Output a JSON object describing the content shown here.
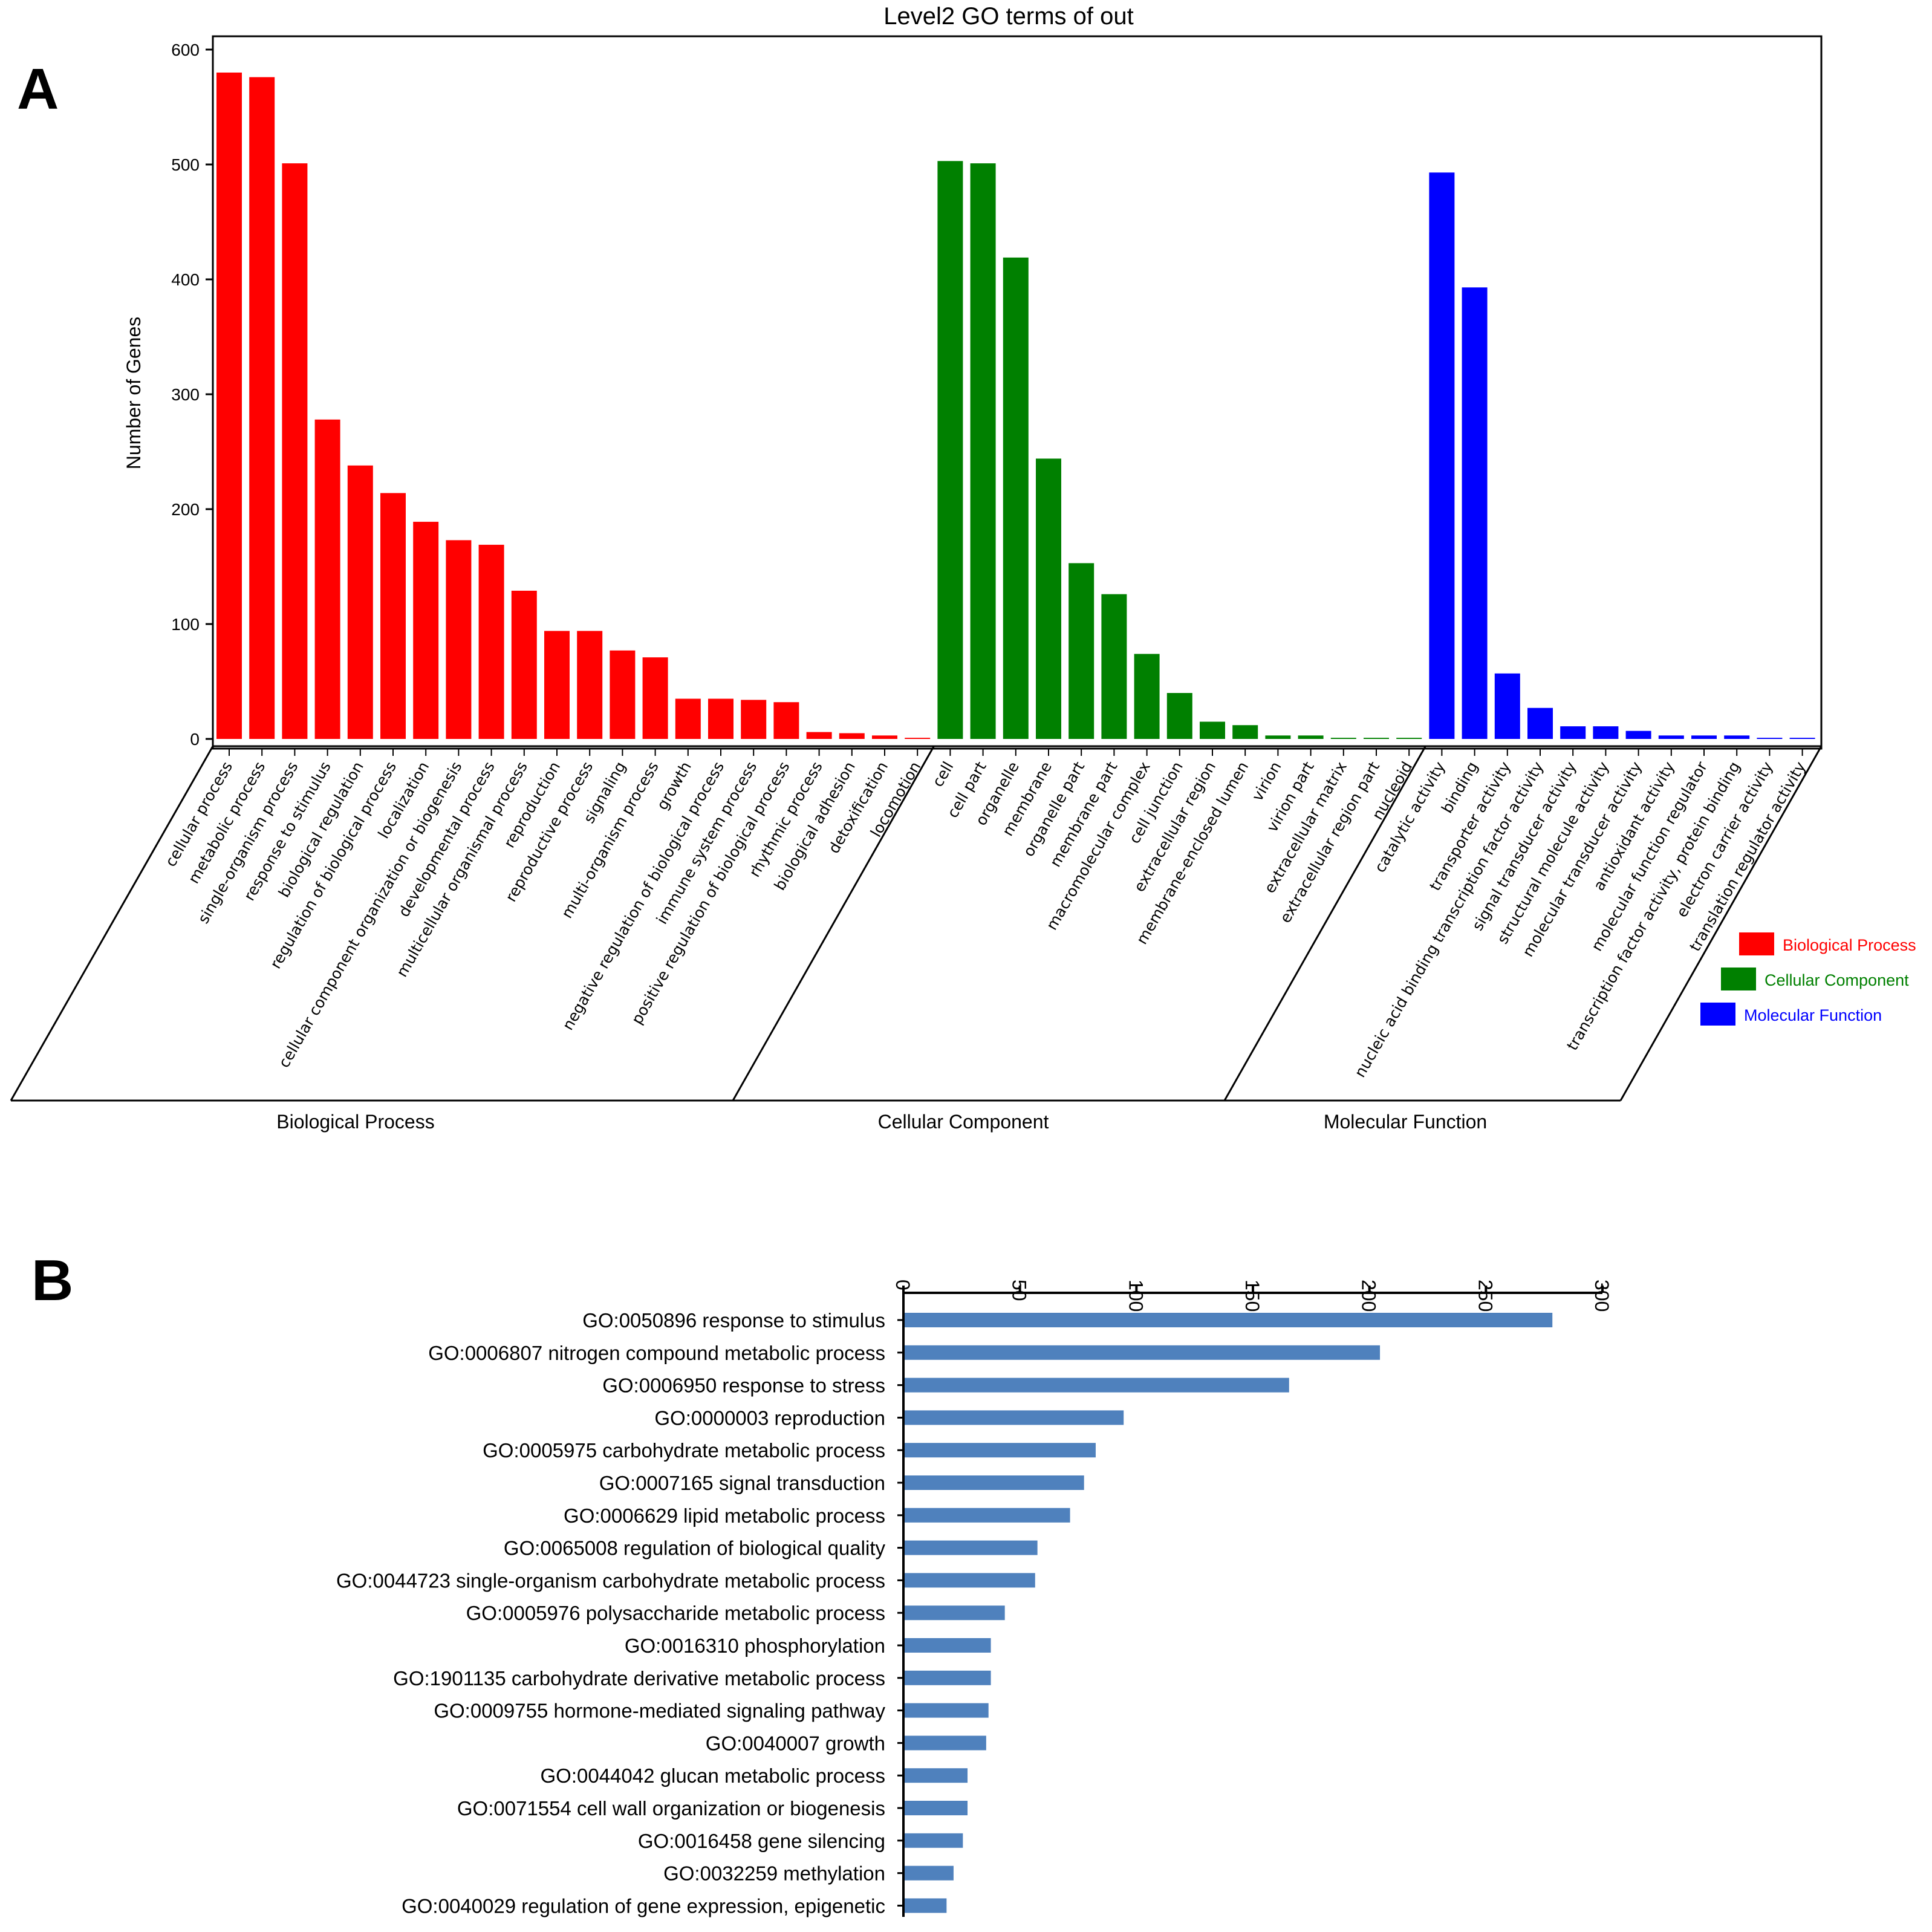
{
  "panel_labels": {
    "a": "A",
    "b": "B"
  },
  "colors": {
    "biological_process": "#ff0000",
    "cellular_component": "#008000",
    "molecular_function": "#0000ff",
    "panel_b_bar": "#4f81bd",
    "axis": "#000000"
  },
  "chart_data": [
    {
      "type": "bar",
      "title": "Level2 GO terms of out",
      "ylabel": "Number of Genes",
      "ylim": [
        0,
        600
      ],
      "yticks": [
        0,
        100,
        200,
        300,
        400,
        500,
        600
      ],
      "grid": false,
      "legend": {
        "position": "right",
        "entries": [
          "Biological Process",
          "Cellular Component",
          "Molecular Function"
        ]
      },
      "groups": [
        {
          "name": "Biological Process",
          "color": "#ff0000",
          "categories": [
            "cellular process",
            "metabolic process",
            "single-organism process",
            "response to stimulus",
            "biological regulation",
            "regulation of biological process",
            "localization",
            "cellular component organization or biogenesis",
            "developmental process",
            "multicellular organismal process",
            "reproduction",
            "reproductive process",
            "signaling",
            "multi-organism process",
            "growth",
            "negative regulation of biological process",
            "immune system process",
            "positive regulation of biological process",
            "rhythmic process",
            "biological adhesion",
            "detoxification",
            "locomotion"
          ],
          "values": [
            580,
            576,
            501,
            278,
            238,
            214,
            189,
            173,
            169,
            129,
            94,
            94,
            77,
            71,
            35,
            35,
            34,
            32,
            6,
            5,
            3,
            1
          ]
        },
        {
          "name": "Cellular Component",
          "color": "#008000",
          "categories": [
            "cell",
            "cell part",
            "organelle",
            "membrane",
            "organelle part",
            "membrane part",
            "macromolecular complex",
            "cell junction",
            "extracellular region",
            "membrane-enclosed lumen",
            "virion",
            "virion part",
            "extracellular matrix",
            "extracellular region part",
            "nucleoid"
          ],
          "values": [
            503,
            501,
            419,
            244,
            153,
            126,
            74,
            40,
            15,
            12,
            3,
            3,
            1,
            1,
            1
          ]
        },
        {
          "name": "Molecular Function",
          "color": "#0000ff",
          "categories": [
            "catalytic activity",
            "binding",
            "transporter activity",
            "nucleic acid binding transcription factor activity",
            "signal transducer activity",
            "structural molecule activity",
            "molecular transducer activity",
            "antioxidant activity",
            "molecular function regulator",
            "transcription factor activity, protein binding",
            "electron carrier activity",
            "translation regulator activity"
          ],
          "values": [
            493,
            393,
            57,
            27,
            11,
            11,
            7,
            3,
            3,
            3,
            1,
            1
          ]
        }
      ]
    },
    {
      "type": "bar",
      "orientation": "horizontal",
      "title": "",
      "xlim": [
        0,
        300
      ],
      "xticks": [
        0,
        50,
        100,
        150,
        200,
        250,
        300
      ],
      "grid": false,
      "color": "#4f81bd",
      "categories": [
        "GO:0050896 response to stimulus",
        "GO:0006807 nitrogen compound metabolic process",
        "GO:0006950 response to stress",
        "GO:0000003 reproduction",
        "GO:0005975 carbohydrate metabolic process",
        "GO:0007165 signal transduction",
        "GO:0006629 lipid metabolic process",
        "GO:0065008 regulation of biological quality",
        "GO:0044723 single-organism carbohydrate metabolic process",
        "GO:0005976 polysaccharide metabolic process",
        "GO:0016310 phosphorylation",
        "GO:1901135 carbohydrate derivative metabolic process",
        "GO:0009755 hormone-mediated signaling pathway",
        "GO:0040007 growth",
        "GO:0044042 glucan metabolic process",
        "GO:0071554 cell wall organization or biogenesis",
        "GO:0016458 gene silencing",
        "GO:0032259 methylation",
        "GO:0040029 regulation of gene expression, epigenetic"
      ],
      "values": [
        278,
        204,
        165,
        94,
        82,
        77,
        71,
        57,
        56,
        43,
        37,
        37,
        36,
        35,
        27,
        27,
        25,
        21,
        18
      ]
    }
  ]
}
